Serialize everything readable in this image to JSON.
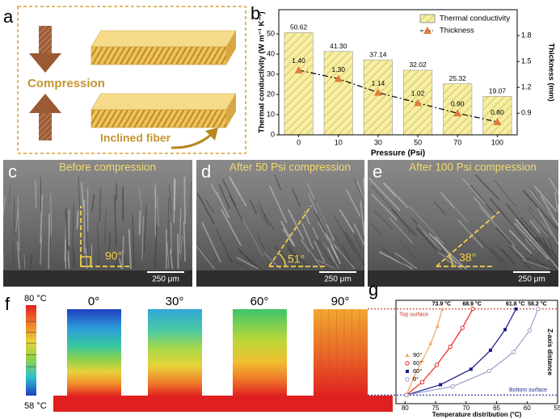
{
  "panel_a": {
    "label": "a",
    "captions": [
      "Compression",
      "Inclined fiber"
    ]
  },
  "chart_data": [
    {
      "type": "bar",
      "panel_label": "b",
      "x_label": "Pressure (Psi)",
      "y_label": "Thermal conductivity (W m⁻¹ K⁻¹)",
      "y2_label": "Thickness (mm)",
      "categories": [
        "0",
        "10",
        "30",
        "50",
        "70",
        "100"
      ],
      "series": [
        {
          "name": "Thermal conductivity",
          "color": "#f7efa0",
          "values": [
            50.62,
            41.3,
            37.14,
            32.02,
            25.32,
            19.07
          ],
          "value_labels": [
            "50.62",
            "41.30",
            "37.14",
            "32.02",
            "25.32",
            "19.07"
          ]
        },
        {
          "name": "Thickness",
          "type": "line",
          "axis": "y2",
          "color": "#e07b39",
          "values": [
            1.4,
            1.3,
            1.14,
            1.02,
            0.9,
            0.8
          ],
          "value_labels": [
            "1.40",
            "1.30",
            "1.14",
            "1.02",
            "0.90",
            "0.80"
          ]
        }
      ],
      "ylim": [
        0,
        62
      ],
      "yticks": [
        0,
        10,
        20,
        30,
        40,
        50
      ],
      "y2lim": [
        0.65,
        2.1
      ],
      "y2ticks": [
        0.9,
        1.2,
        1.5,
        1.8
      ],
      "legend": "top-right"
    },
    {
      "type": "line",
      "panel_label": "g",
      "x_label": "Temperature distribution (°C)",
      "y_label": "Z-axis distance",
      "xlim": [
        81.5,
        55
      ],
      "xticks": [
        80,
        75,
        70,
        65,
        60,
        55
      ],
      "ylim": [
        -0.1,
        1.1
      ],
      "series": [
        {
          "name": "90°",
          "color": "#f4a460",
          "marker": "triangle",
          "x": [
            79.8,
            78.6,
            77.2,
            75.8,
            74.7,
            73.9
          ],
          "values": [
            0,
            0.2,
            0.4,
            0.6,
            0.8,
            1
          ]
        },
        {
          "name": "60°",
          "color": "#e8251c",
          "marker": "circle",
          "x": [
            79.8,
            77.2,
            74.8,
            72.6,
            70.6,
            68.9
          ],
          "values": [
            0,
            0.15,
            0.35,
            0.56,
            0.78,
            1
          ]
        },
        {
          "name": "60°",
          "color": "#1a1a8c",
          "marker": "square",
          "x": [
            79.8,
            74.2,
            69.2,
            66.0,
            63.6,
            61.8
          ],
          "values": [
            0,
            0.12,
            0.3,
            0.52,
            0.76,
            1
          ]
        },
        {
          "name": "0°",
          "color": "#9aa0c8",
          "marker": "circle",
          "x": [
            79.8,
            72.2,
            66.2,
            62.2,
            59.6,
            58.2
          ],
          "values": [
            0,
            0.1,
            0.28,
            0.5,
            0.75,
            1
          ]
        }
      ],
      "annotations": [
        "73.9 °C",
        "68.9 °C",
        "61.8 °C",
        "58.2 °C"
      ],
      "reference_lines": [
        {
          "label": "Top surface",
          "value": 1,
          "color": "#c0392b"
        },
        {
          "label": "Bottom surface",
          "value": 0,
          "color": "#1f2a8c"
        }
      ],
      "legend": "lower-left"
    }
  ],
  "sem_panels": [
    {
      "label": "c",
      "title": "Before compression",
      "angle": "90°",
      "scale": "250 μm"
    },
    {
      "label": "d",
      "title": "After 50 Psi compression",
      "angle": "51°",
      "scale": "250 μm"
    },
    {
      "label": "e",
      "title": "After 100 Psi compression",
      "angle": "38°",
      "scale": "250 μm"
    }
  ],
  "panel_f": {
    "label": "f",
    "scale_max": "80 °C",
    "scale_min": "58 °C",
    "angles": [
      "0°",
      "30°",
      "60°",
      "90°"
    ]
  }
}
